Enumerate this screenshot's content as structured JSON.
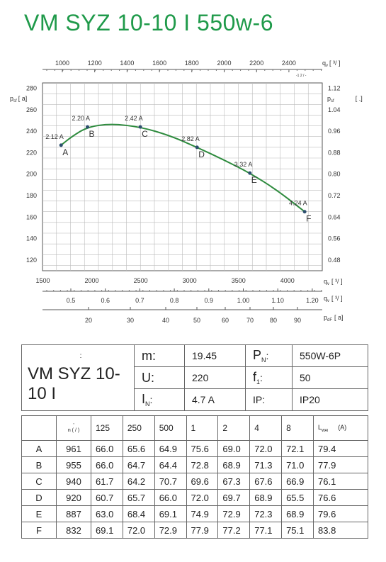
{
  "title": "VM SYZ 10-10 I 550w-6",
  "chart_data": {
    "type": "line",
    "left_axis_label": "p",
    "left_axis_sub": "sf",
    "left_axis_unit": "[ a]",
    "y_ticks": [
      120,
      140,
      160,
      180,
      200,
      220,
      240,
      260,
      280
    ],
    "ylim": [
      110,
      285
    ],
    "right_axis_label": "p",
    "right_axis_sub": "sf",
    "right_axis_unit": "[ .]",
    "right_ticks": [
      "0.48",
      "0.56",
      "0.64",
      "0.72",
      "0.80",
      "0.88",
      "0.96",
      "1.04",
      "1.12"
    ],
    "bottom_axis_label": "q",
    "bottom_axis_sub": "v",
    "bottom_axis_unit": "[ ³/ ]",
    "x_ticks": [
      1500,
      2000,
      2500,
      3000,
      3500,
      4000
    ],
    "xlim": [
      1500,
      4000
    ],
    "top_axis_label": "q",
    "top_axis_sub": "v",
    "top_axis_unit": "[ ³/ ]",
    "top_axis_extra": "-1 2 / -",
    "top_ticks": [
      1000,
      1200,
      1400,
      1600,
      1800,
      2000,
      2200,
      2400
    ],
    "bottom2_axis_label": "q",
    "bottom2_axis_sub": "v",
    "bottom2_axis_unit": "[ ³/ ]",
    "bottom2_ticks": [
      "0.5",
      "0.6",
      "0.7",
      "0.8",
      "0.9",
      "1.00",
      "1.10",
      "1.20"
    ],
    "bottom3_axis_label": "p",
    "bottom3_axis_sub": "dF",
    "bottom3_axis_unit": "[ a]",
    "bottom3_ticks": [
      "20",
      "30",
      "40",
      "50",
      "60",
      "70",
      "80",
      "90"
    ],
    "points": [
      {
        "label": "A",
        "x": 1690,
        "y": 227,
        "current": "2.12 A"
      },
      {
        "label": "B",
        "x": 1960,
        "y": 244,
        "current": "2.20 A"
      },
      {
        "label": "C",
        "x": 2500,
        "y": 244,
        "current": "2.42 A"
      },
      {
        "label": "D",
        "x": 3080,
        "y": 225,
        "current": "2.82 A"
      },
      {
        "label": "E",
        "x": 3620,
        "y": 201,
        "current": "3.32 A"
      },
      {
        "label": "F",
        "x": 4180,
        "y": 165,
        "current": "4.24 A"
      }
    ],
    "curve": [
      [
        1690,
        227
      ],
      [
        1800,
        235
      ],
      [
        1960,
        244
      ],
      [
        2200,
        247
      ],
      [
        2500,
        244
      ],
      [
        2800,
        236
      ],
      [
        3080,
        225
      ],
      [
        3360,
        213
      ],
      [
        3620,
        201
      ],
      [
        3900,
        185
      ],
      [
        4180,
        165
      ]
    ],
    "curve_color": "#2e8b3e",
    "grid": true
  },
  "spec": {
    "model": "VM SYZ 10-10 I",
    "model_colon": ":",
    "m_label": "m:",
    "m_value": "19.45",
    "pn_label": "P",
    "pn_sub": "N",
    "pn_colon": ":",
    "pn_value": "550W-6P",
    "u_label": "U:",
    "u_value": "220",
    "f_label": "f",
    "f_sub": "1",
    "f_colon": ":",
    "f_value": "50",
    "in_label": "I",
    "in_sub": "N",
    "in_colon": ":",
    "in_value": "4.7 A",
    "ip_label": "IP:",
    "ip_value": "IP20"
  },
  "noise_table": {
    "rpm_header_top": "'",
    "rpm_header": "n ( / )",
    "bands": [
      "125",
      "250",
      "500",
      "1",
      "2",
      "4",
      "8"
    ],
    "lwa_header": "L",
    "lwa_sub": "WAI",
    "lwa_unit": "(A)",
    "rows": [
      {
        "point": "A",
        "rpm": "961",
        "values": [
          "66.0",
          "65.6",
          "64.9",
          "75.6",
          "69.0",
          "72.0",
          "72.1"
        ],
        "lwa": "79.4"
      },
      {
        "point": "B",
        "rpm": "955",
        "values": [
          "66.0",
          "64.7",
          "64.4",
          "72.8",
          "68.9",
          "71.3",
          "71.0"
        ],
        "lwa": "77.9"
      },
      {
        "point": "C",
        "rpm": "940",
        "values": [
          "61.7",
          "64.2",
          "70.7",
          "69.6",
          "67.3",
          "67.6",
          "66.9"
        ],
        "lwa": "76.1"
      },
      {
        "point": "D",
        "rpm": "920",
        "values": [
          "60.7",
          "65.7",
          "66.0",
          "72.0",
          "69.7",
          "68.9",
          "65.5"
        ],
        "lwa": "76.6"
      },
      {
        "point": "E",
        "rpm": "887",
        "values": [
          "63.0",
          "68.4",
          "69.1",
          "74.9",
          "72.9",
          "72.3",
          "68.9"
        ],
        "lwa": "79.6"
      },
      {
        "point": "F",
        "rpm": "832",
        "values": [
          "69.1",
          "72.0",
          "72.9",
          "77.9",
          "77.2",
          "77.1",
          "75.1"
        ],
        "lwa": "83.8"
      }
    ]
  }
}
